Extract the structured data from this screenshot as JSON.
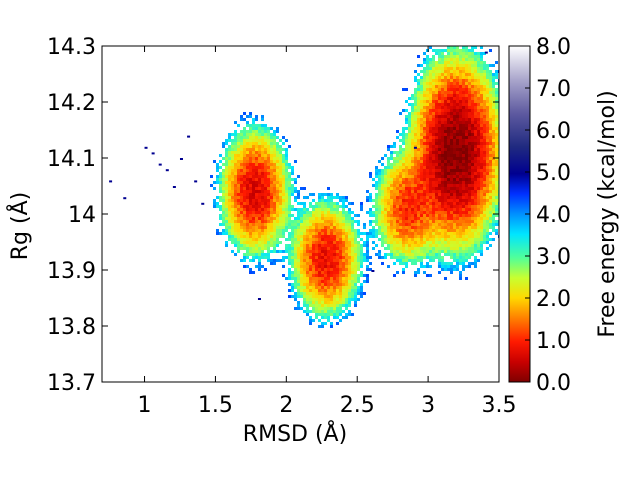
{
  "chart_data": {
    "type": "heatmap",
    "title": "",
    "xlabel": "RMSD  (Å)",
    "ylabel": "Rg (Å)",
    "xlim": [
      0.7,
      3.5
    ],
    "ylim": [
      13.7,
      14.3
    ],
    "x_ticks": [
      "1",
      "1.5",
      "2",
      "2.5",
      "3",
      "3.5"
    ],
    "y_ticks": [
      "13.7",
      "13.8",
      "13.9",
      "14",
      "14.1",
      "14.2",
      "14.3"
    ],
    "colorbar": {
      "label": "Free energy (kcal/mol)",
      "range": [
        0.0,
        8.0
      ],
      "ticks": [
        "0.0",
        "1.0",
        "2.0",
        "3.0",
        "4.0",
        "5.0",
        "6.0",
        "7.0",
        "8.0"
      ],
      "colormap": "jet-like (dark red = 0, red, orange, yellow, green, cyan, blue, navy = 5, purple to white = 8)"
    },
    "basins": [
      {
        "rmsd": 1.78,
        "rg": 14.04,
        "min_free_energy": 0.8
      },
      {
        "rmsd": 2.28,
        "rg": 13.92,
        "min_free_energy": 0.9
      },
      {
        "rmsd": 2.85,
        "rg": 14.01,
        "min_free_energy": 1.2
      },
      {
        "rmsd": 3.2,
        "rg": 14.11,
        "min_free_energy": 0.0
      }
    ],
    "grid": false,
    "legend": "none"
  }
}
